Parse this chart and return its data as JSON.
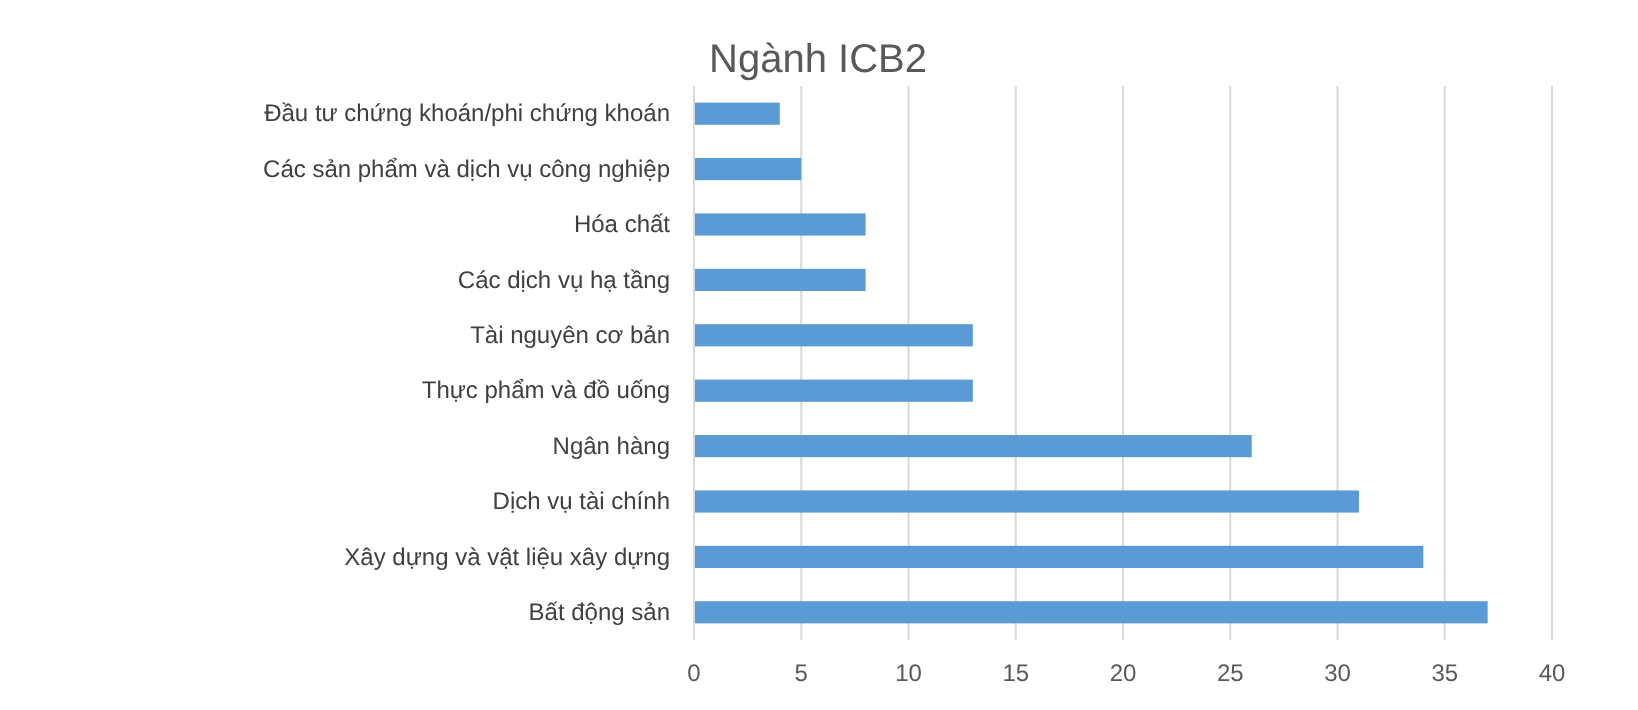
{
  "chart_data": {
    "type": "bar",
    "orientation": "horizontal",
    "title": "Ngành ICB2",
    "categories": [
      "Đầu tư chứng khoán/phi chứng khoán",
      "Các sản phẩm và dịch vụ công nghiệp",
      "Hóa chất",
      "Các dịch vụ hạ tầng",
      "Tài nguyên cơ bản",
      "Thực phẩm và đồ uống",
      "Ngân hàng",
      "Dịch vụ tài chính",
      "Xây dựng và vật liệu xây dựng",
      "Bất động sản"
    ],
    "values": [
      4,
      5,
      8,
      8,
      13,
      13,
      26,
      31,
      34,
      37
    ],
    "color": "#5b9bd5",
    "xlim": [
      0,
      40
    ],
    "xticks": [
      0,
      5,
      10,
      15,
      20,
      25,
      30,
      35,
      40
    ],
    "grid": "x"
  }
}
